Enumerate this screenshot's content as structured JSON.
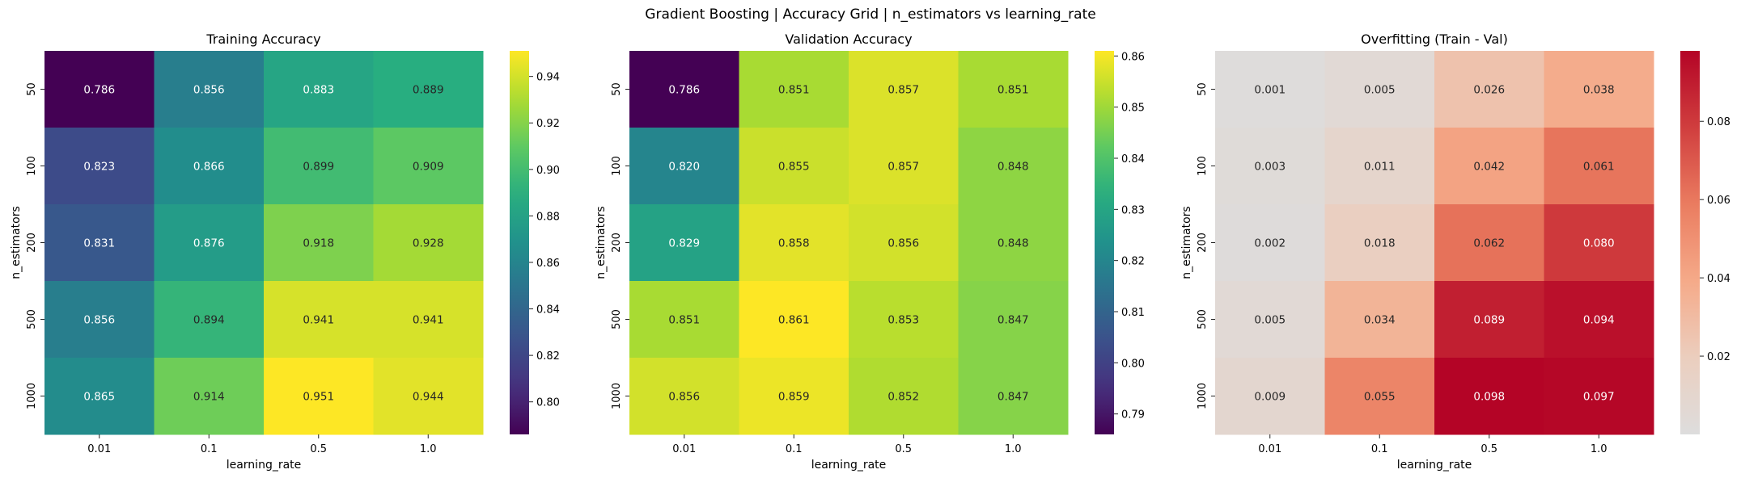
{
  "figure": {
    "title": "Gradient Boosting | Accuracy Grid | n_estimators vs learning_rate"
  },
  "chart_data": [
    {
      "type": "heatmap",
      "title": "Training Accuracy",
      "xlabel": "learning_rate",
      "ylabel": "n_estimators",
      "x": [
        "0.01",
        "0.1",
        "0.5",
        "1.0"
      ],
      "y": [
        "50",
        "100",
        "200",
        "500",
        "1000"
      ],
      "values": [
        [
          0.786,
          0.856,
          0.883,
          0.889
        ],
        [
          0.823,
          0.866,
          0.899,
          0.909
        ],
        [
          0.831,
          0.876,
          0.918,
          0.928
        ],
        [
          0.856,
          0.894,
          0.941,
          0.941
        ],
        [
          0.865,
          0.914,
          0.951,
          0.944
        ]
      ],
      "colormap": "viridis",
      "vmin": 0.786,
      "vmax": 0.951,
      "colorbar_ticks": [
        "0.80",
        "0.82",
        "0.84",
        "0.86",
        "0.88",
        "0.90",
        "0.92",
        "0.94"
      ],
      "fmt": ".3f"
    },
    {
      "type": "heatmap",
      "title": "Validation Accuracy",
      "xlabel": "learning_rate",
      "ylabel": "n_estimators",
      "x": [
        "0.01",
        "0.1",
        "0.5",
        "1.0"
      ],
      "y": [
        "50",
        "100",
        "200",
        "500",
        "1000"
      ],
      "values": [
        [
          0.786,
          0.851,
          0.857,
          0.851
        ],
        [
          0.82,
          0.855,
          0.857,
          0.848
        ],
        [
          0.829,
          0.858,
          0.856,
          0.848
        ],
        [
          0.851,
          0.861,
          0.853,
          0.847
        ],
        [
          0.856,
          0.859,
          0.852,
          0.847
        ]
      ],
      "colormap": "viridis",
      "vmin": 0.786,
      "vmax": 0.861,
      "colorbar_ticks": [
        "0.79",
        "0.80",
        "0.81",
        "0.82",
        "0.83",
        "0.84",
        "0.85",
        "0.86"
      ],
      "fmt": ".3f"
    },
    {
      "type": "heatmap",
      "title": "Overfitting (Train - Val)",
      "xlabel": "learning_rate",
      "ylabel": "n_estimators",
      "x": [
        "0.01",
        "0.1",
        "0.5",
        "1.0"
      ],
      "y": [
        "50",
        "100",
        "200",
        "500",
        "1000"
      ],
      "values": [
        [
          0.001,
          0.005,
          0.026,
          0.038
        ],
        [
          0.003,
          0.011,
          0.042,
          0.061
        ],
        [
          0.002,
          0.018,
          0.062,
          0.08
        ],
        [
          0.005,
          0.034,
          0.089,
          0.094
        ],
        [
          0.009,
          0.055,
          0.098,
          0.097
        ]
      ],
      "colormap": "coolwarm-upper",
      "vmin": 0.0,
      "vmax": 0.098,
      "colorbar_ticks": [
        "0.02",
        "0.04",
        "0.06",
        "0.08"
      ],
      "fmt": ".3f"
    }
  ]
}
